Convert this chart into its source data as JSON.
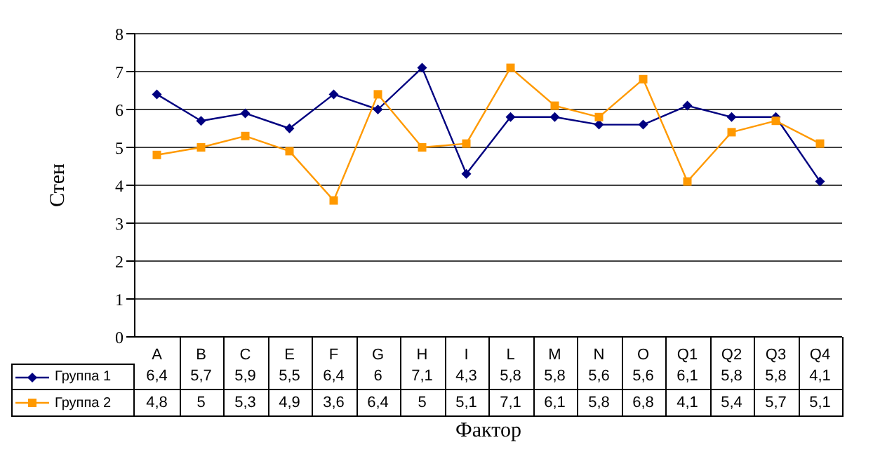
{
  "chart_data": {
    "type": "line",
    "xlabel": "Фактор",
    "ylabel": "Стен",
    "categories": [
      "A",
      "B",
      "C",
      "E",
      "F",
      "G",
      "H",
      "I",
      "L",
      "M",
      "N",
      "O",
      "Q1",
      "Q2",
      "Q3",
      "Q4"
    ],
    "series": [
      {
        "name": "Группа 1",
        "color": "#000080",
        "marker": "diamond",
        "values": [
          6.4,
          5.7,
          5.9,
          5.5,
          6.4,
          6,
          7.1,
          4.3,
          5.8,
          5.8,
          5.6,
          5.6,
          6.1,
          5.8,
          5.8,
          4.1
        ],
        "value_labels": [
          "6,4",
          "5,7",
          "5,9",
          "5,5",
          "6,4",
          "6",
          "7,1",
          "4,3",
          "5,8",
          "5,8",
          "5,6",
          "5,6",
          "6,1",
          "5,8",
          "5,8",
          "4,1"
        ]
      },
      {
        "name": "Группа 2",
        "color": "#ff9900",
        "marker": "square",
        "values": [
          4.8,
          5,
          5.3,
          4.9,
          3.6,
          6.4,
          5,
          5.1,
          7.1,
          6.1,
          5.8,
          6.8,
          4.1,
          5.4,
          5.7,
          5.1
        ],
        "value_labels": [
          "4,8",
          "5",
          "5,3",
          "4,9",
          "3,6",
          "6,4",
          "5",
          "5,1",
          "7,1",
          "6,1",
          "5,8",
          "6,8",
          "4,1",
          "5,4",
          "5,7",
          "5,1"
        ]
      }
    ],
    "ylim": [
      0,
      8
    ],
    "yticks": [
      0,
      1,
      2,
      3,
      4,
      5,
      6,
      7,
      8
    ],
    "grid": "y",
    "legend": "bottom"
  }
}
